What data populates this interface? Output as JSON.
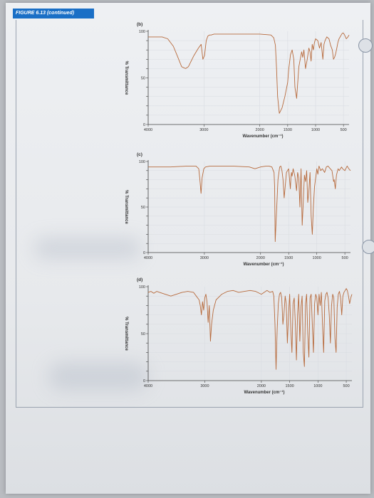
{
  "figure": {
    "header": "FIGURE 6.13 (continued)"
  },
  "colors": {
    "spectrum": "#b76a3c",
    "axis": "#444444",
    "grid": "#d9dce2",
    "header": "#1a6fc6"
  },
  "chart_data": [
    {
      "type": "line",
      "panel_label": "(b)",
      "xlabel": "Wavenumber (cm⁻¹)",
      "ylabel": "% Transmittance",
      "xlim": [
        4000,
        400
      ],
      "ylim": [
        0,
        100
      ],
      "x_ticks": [
        4000,
        3000,
        2000,
        1500,
        1000,
        500
      ],
      "x_tick_labels": [
        "4000",
        "3000",
        "2000",
        "1500",
        "1000",
        "500"
      ],
      "y_ticks": [
        0,
        50,
        100
      ],
      "y_tick_labels": [
        "0",
        "50",
        "100"
      ],
      "series": [
        {
          "x": [
            4000,
            3750,
            3650,
            3550,
            3480,
            3400,
            3330,
            3280,
            3230,
            3180,
            3100,
            3050,
            3020,
            2990,
            2960,
            2930,
            2900,
            2870,
            2820,
            2750,
            2500,
            2200,
            2000,
            1800,
            1750,
            1720,
            1700,
            1680,
            1650,
            1600,
            1550,
            1500,
            1480,
            1450,
            1420,
            1390,
            1370,
            1340,
            1300,
            1250,
            1230,
            1210,
            1180,
            1150,
            1120,
            1100,
            1080,
            1060,
            1040,
            1020,
            1000,
            960,
            930,
            900,
            870,
            850,
            830,
            800,
            760,
            730,
            700,
            680,
            660,
            640,
            620,
            600,
            580,
            560,
            540,
            520,
            500,
            480,
            450,
            420,
            400
          ],
          "y": [
            94,
            94,
            92,
            84,
            74,
            62,
            60,
            62,
            68,
            74,
            82,
            86,
            70,
            74,
            90,
            95,
            96,
            96,
            97,
            97,
            97,
            97,
            97,
            96,
            93,
            85,
            60,
            30,
            12,
            18,
            30,
            45,
            60,
            75,
            80,
            70,
            40,
            28,
            62,
            78,
            72,
            80,
            60,
            70,
            82,
            78,
            68,
            86,
            80,
            88,
            92,
            90,
            82,
            88,
            70,
            86,
            90,
            94,
            92,
            85,
            80,
            70,
            72,
            76,
            82,
            88,
            92,
            94,
            96,
            98,
            98,
            96,
            92,
            94,
            96
          ]
        }
      ]
    },
    {
      "type": "line",
      "panel_label": "(c)",
      "xlabel": "Wavenumber (cm⁻¹)",
      "ylabel": "% Transmittance",
      "xlim": [
        4000,
        400
      ],
      "ylim": [
        0,
        100
      ],
      "x_ticks": [
        4000,
        3000,
        2000,
        1500,
        1000,
        500
      ],
      "x_tick_labels": [
        "4000",
        "3000",
        "2000",
        "1500",
        "1000",
        "500"
      ],
      "y_ticks": [
        0,
        50,
        100
      ],
      "y_tick_labels": [
        "0",
        "50",
        "100"
      ],
      "series": [
        {
          "x": [
            4000,
            3600,
            3300,
            3150,
            3100,
            3080,
            3060,
            3040,
            3010,
            2980,
            2900,
            2500,
            2200,
            2100,
            2000,
            1900,
            1850,
            1800,
            1760,
            1750,
            1740,
            1720,
            1690,
            1660,
            1640,
            1620,
            1600,
            1580,
            1540,
            1500,
            1470,
            1460,
            1450,
            1440,
            1420,
            1390,
            1360,
            1340,
            1320,
            1300,
            1280,
            1260,
            1240,
            1220,
            1200,
            1180,
            1160,
            1140,
            1120,
            1100,
            1080,
            1060,
            1040,
            1000,
            980,
            960,
            930,
            900,
            860,
            830,
            800,
            760,
            730,
            700,
            690,
            670,
            650,
            620,
            600,
            560,
            540,
            500,
            460,
            430,
            400
          ],
          "y": [
            94,
            94,
            95,
            95,
            92,
            80,
            65,
            82,
            92,
            94,
            95,
            95,
            94,
            92,
            94,
            95,
            95,
            94,
            88,
            72,
            12,
            40,
            80,
            94,
            95,
            90,
            80,
            60,
            88,
            92,
            70,
            82,
            88,
            84,
            92,
            84,
            68,
            88,
            82,
            50,
            92,
            30,
            55,
            85,
            78,
            90,
            55,
            68,
            88,
            40,
            20,
            50,
            72,
            92,
            86,
            95,
            90,
            92,
            88,
            94,
            95,
            92,
            90,
            78,
            80,
            70,
            85,
            92,
            90,
            94,
            92,
            90,
            95,
            92,
            90
          ]
        }
      ]
    },
    {
      "type": "line",
      "panel_label": "(d)",
      "xlabel": "Wavenumber (cm⁻¹)",
      "ylabel": "% Transmittance",
      "xlim": [
        4000,
        400
      ],
      "ylim": [
        0,
        100
      ],
      "x_ticks": [
        4000,
        3000,
        2000,
        1500,
        1000,
        500
      ],
      "x_tick_labels": [
        "4000",
        "3000",
        "2000",
        "1500",
        "1000",
        "500"
      ],
      "y_ticks": [
        0,
        50,
        100
      ],
      "y_tick_labels": [
        "0",
        "50",
        "100"
      ],
      "series": [
        {
          "x": [
            4000,
            3950,
            3900,
            3850,
            3800,
            3700,
            3600,
            3500,
            3400,
            3300,
            3200,
            3150,
            3100,
            3080,
            3060,
            3040,
            3020,
            3000,
            2980,
            2960,
            2940,
            2920,
            2900,
            2880,
            2850,
            2800,
            2700,
            2600,
            2500,
            2400,
            2300,
            2200,
            2100,
            2000,
            1950,
            1900,
            1850,
            1800,
            1780,
            1760,
            1740,
            1730,
            1720,
            1700,
            1680,
            1660,
            1640,
            1620,
            1600,
            1580,
            1560,
            1540,
            1520,
            1500,
            1480,
            1460,
            1440,
            1420,
            1400,
            1380,
            1360,
            1340,
            1320,
            1300,
            1280,
            1260,
            1240,
            1220,
            1200,
            1180,
            1160,
            1140,
            1120,
            1100,
            1080,
            1060,
            1040,
            1020,
            1000,
            980,
            960,
            940,
            920,
            900,
            880,
            860,
            840,
            820,
            800,
            780,
            760,
            740,
            720,
            700,
            680,
            660,
            640,
            620,
            600,
            580,
            560,
            540,
            520,
            500,
            480,
            460,
            440,
            420,
            400
          ],
          "y": [
            94,
            95,
            93,
            95,
            94,
            92,
            90,
            92,
            94,
            95,
            94,
            90,
            86,
            80,
            70,
            84,
            75,
            88,
            92,
            84,
            62,
            80,
            42,
            60,
            75,
            86,
            92,
            95,
            96,
            94,
            95,
            96,
            95,
            92,
            94,
            96,
            94,
            95,
            90,
            60,
            12,
            35,
            55,
            82,
            92,
            94,
            88,
            60,
            72,
            90,
            82,
            40,
            70,
            92,
            55,
            30,
            82,
            88,
            60,
            22,
            70,
            92,
            42,
            78,
            90,
            30,
            15,
            82,
            92,
            50,
            25,
            88,
            92,
            60,
            30,
            82,
            92,
            88,
            70,
            92,
            80,
            94,
            60,
            30,
            85,
            92,
            94,
            88,
            70,
            40,
            80,
            92,
            88,
            45,
            30,
            78,
            92,
            95,
            88,
            70,
            90,
            94,
            96,
            98,
            96,
            90,
            82,
            88,
            92
          ]
        }
      ]
    }
  ]
}
